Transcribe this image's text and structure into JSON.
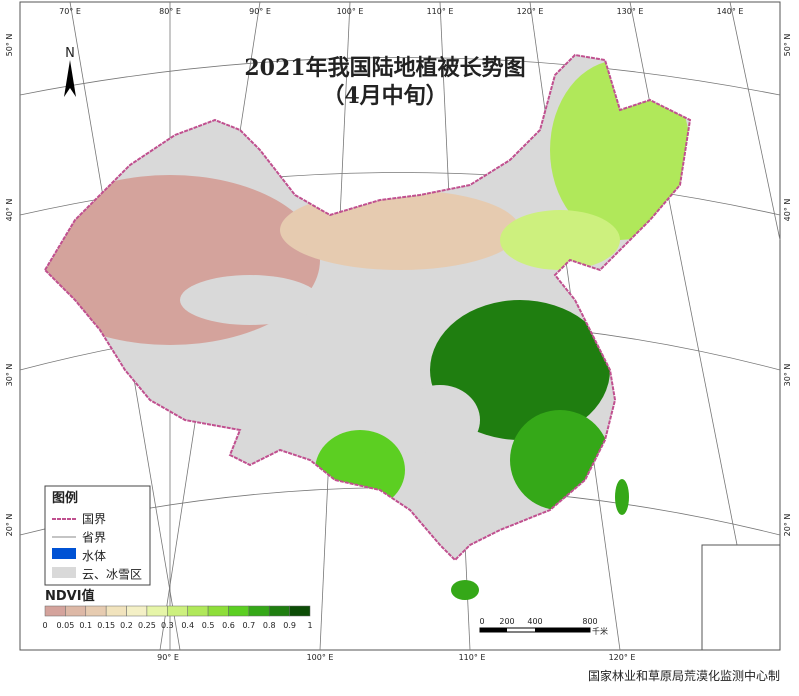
{
  "header": {
    "title": "2021年我国陆地植被长势图",
    "subtitle": "（4月中旬）"
  },
  "north": "N",
  "graticule": {
    "top": [
      "70° E",
      "80° E",
      "90° E",
      "100° E",
      "110° E",
      "120° E",
      "130° E",
      "140° E"
    ],
    "bottom": [
      "90° E",
      "100° E",
      "110° E",
      "120° E"
    ],
    "left": [
      "50° N",
      "40° N",
      "30° N",
      "20° N"
    ],
    "right": [
      "50° N",
      "40° N",
      "30° N",
      "20° N"
    ]
  },
  "legend": {
    "title": "图例",
    "items": [
      "国界",
      "省界",
      "水体",
      "云、冰雪区"
    ]
  },
  "ndvi_legend": {
    "title": "NDVI值",
    "labels": [
      "0",
      "0.05",
      "0.1",
      "0.15",
      "0.2",
      "0.25",
      "0.3",
      "0.4",
      "0.5",
      "0.6",
      "0.7",
      "0.8",
      "0.9",
      "1"
    ],
    "colors": [
      "#d4a39c",
      "#ddb8a6",
      "#e6cbb0",
      "#f1e3bd",
      "#f4f0c6",
      "#e6f5a8",
      "#cdf07e",
      "#b0e85a",
      "#8ede3a",
      "#5ccf22",
      "#35a818",
      "#1f7e10",
      "#0c4c06"
    ]
  },
  "scale": {
    "labels": [
      "0",
      "200",
      "400",
      "800"
    ],
    "unit": "千米"
  },
  "footer": "国家林业和草原局荒漠化监测中心制"
}
